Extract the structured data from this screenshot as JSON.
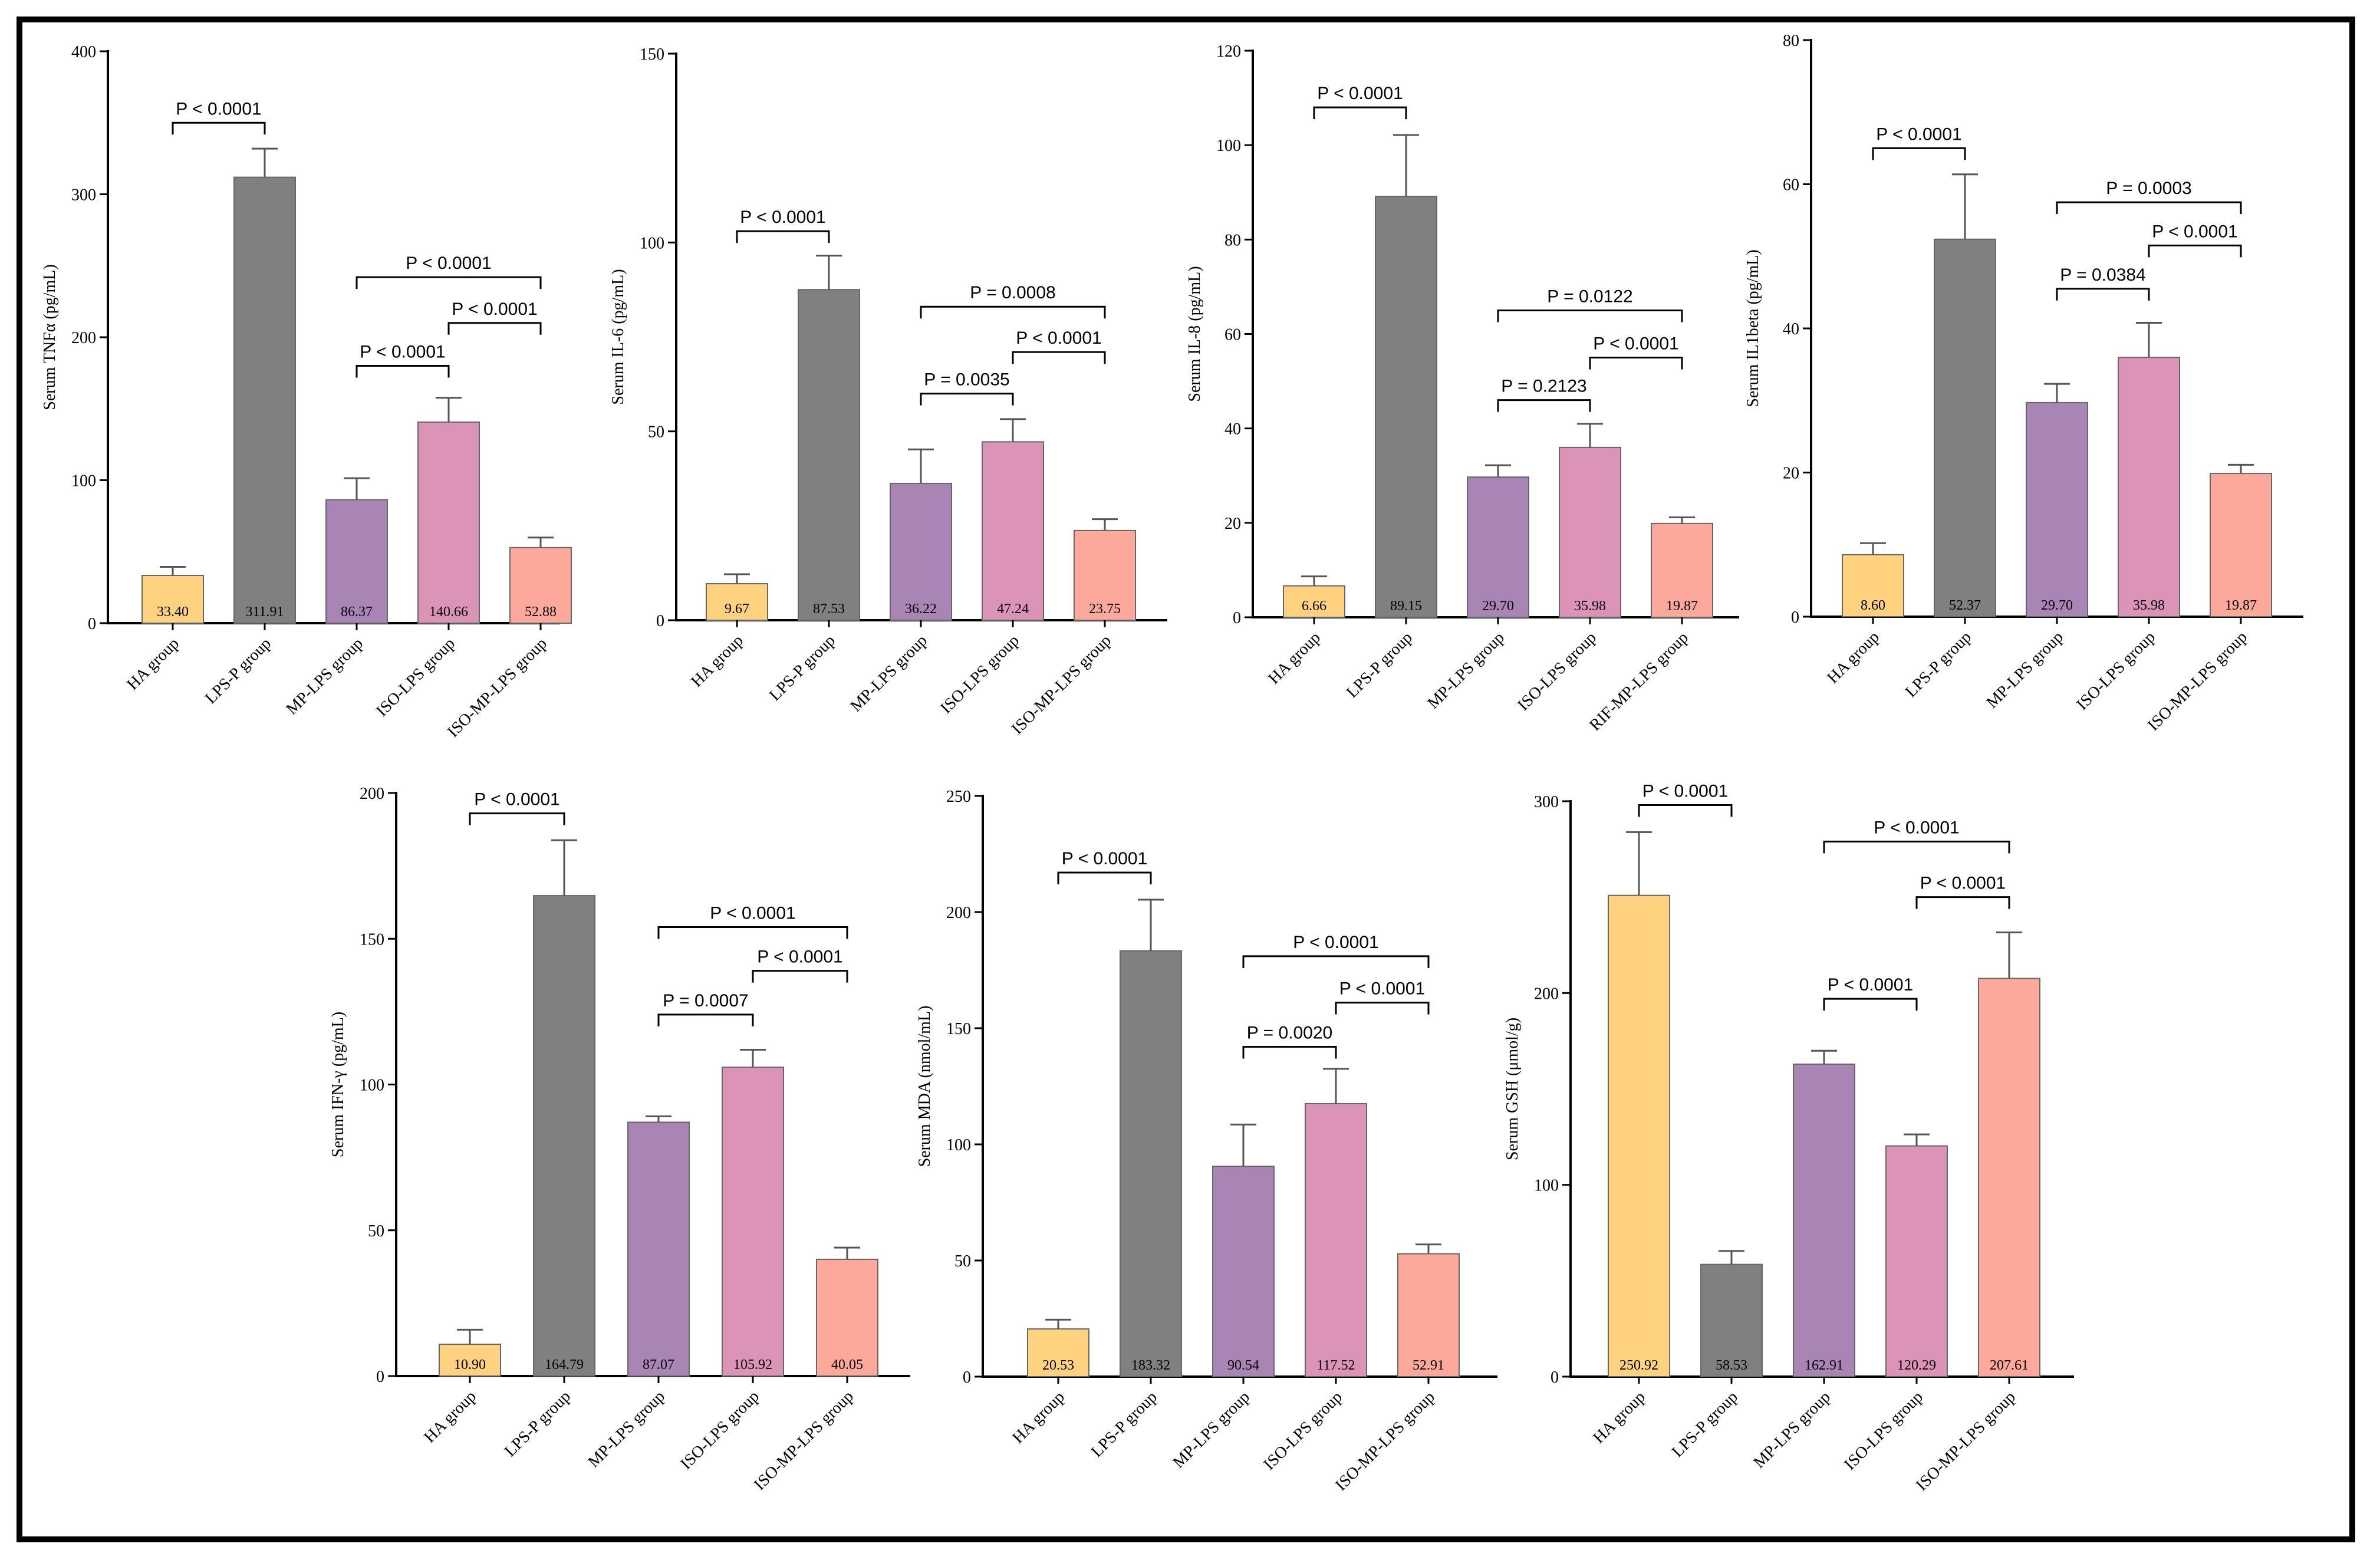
{
  "chart_data": [
    {
      "type": "bar",
      "ylabel": "Serum TNFα (pg/mL)",
      "ylim": [
        0,
        400
      ],
      "yticks": [
        0,
        100,
        200,
        300,
        400
      ],
      "categories": [
        "HA group",
        "LPS-P group",
        "MP-LPS group",
        "ISO-LPS group",
        "ISO-MP-LPS group"
      ],
      "values": [
        33.4,
        311.91,
        86.37,
        140.66,
        52.88
      ],
      "value_labels": [
        "33.40",
        "311.91",
        "86.37",
        "140.66",
        "52.88"
      ],
      "errors": [
        6,
        20,
        15,
        17,
        7
      ],
      "colors": [
        "#FFD27F",
        "#808080",
        "#A985B6",
        "#DC93B8",
        "#FCA89A"
      ],
      "comparisons": [
        {
          "from": 0,
          "to": 1,
          "y": 350,
          "label": "P < 0.0001"
        },
        {
          "from": 2,
          "to": 3,
          "y": 180,
          "label": "P < 0.0001"
        },
        {
          "from": 2,
          "to": 4,
          "y": 242,
          "label": "P < 0.0001"
        },
        {
          "from": 3,
          "to": 4,
          "y": 210,
          "label": "P < 0.0001"
        }
      ]
    },
    {
      "type": "bar",
      "ylabel": "Serum IL-6 (pg/mL)",
      "ylim": [
        0,
        150
      ],
      "yticks": [
        0,
        50,
        100,
        150
      ],
      "categories": [
        "HA group",
        "LPS-P group",
        "MP-LPS group",
        "ISO-LPS group",
        "ISO-MP-LPS group"
      ],
      "values": [
        9.67,
        87.53,
        36.22,
        47.24,
        23.75
      ],
      "value_labels": [
        "9.67",
        "87.53",
        "36.22",
        "47.24",
        "23.75"
      ],
      "errors": [
        2.5,
        9,
        9,
        6,
        3
      ],
      "colors": [
        "#FFD27F",
        "#808080",
        "#A985B6",
        "#DC93B8",
        "#FCA89A"
      ],
      "comparisons": [
        {
          "from": 0,
          "to": 1,
          "y": 103,
          "label": "P < 0.0001"
        },
        {
          "from": 2,
          "to": 3,
          "y": 60,
          "label": "P = 0.0035"
        },
        {
          "from": 2,
          "to": 4,
          "y": 83,
          "label": "P = 0.0008"
        },
        {
          "from": 3,
          "to": 4,
          "y": 71,
          "label": "P < 0.0001"
        }
      ]
    },
    {
      "type": "bar",
      "ylabel": "Serum IL-8 (pg/mL)",
      "ylim": [
        0,
        120
      ],
      "yticks": [
        0,
        20,
        40,
        60,
        80,
        100,
        120
      ],
      "categories": [
        "HA group",
        "LPS-P group",
        "MP-LPS group",
        "ISO-LPS group",
        "RIF-MP-LPS group"
      ],
      "values": [
        6.66,
        89.15,
        29.7,
        35.98,
        19.87
      ],
      "value_labels": [
        "6.66",
        "89.15",
        "29.70",
        "35.98",
        "19.87"
      ],
      "errors": [
        2,
        13,
        2.5,
        5,
        1.3
      ],
      "colors": [
        "#FFD27F",
        "#808080",
        "#A985B6",
        "#DC93B8",
        "#FCA89A"
      ],
      "comparisons": [
        {
          "from": 0,
          "to": 1,
          "y": 108,
          "label": "P < 0.0001"
        },
        {
          "from": 2,
          "to": 3,
          "y": 46,
          "label": "P = 0.2123"
        },
        {
          "from": 2,
          "to": 4,
          "y": 65,
          "label": "P = 0.0122"
        },
        {
          "from": 3,
          "to": 4,
          "y": 55,
          "label": "P < 0.0001"
        }
      ]
    },
    {
      "type": "bar",
      "ylabel": "Serum IL1beta (pg/mL)",
      "ylim": [
        0,
        80
      ],
      "yticks": [
        0,
        20,
        40,
        60,
        80
      ],
      "categories": [
        "HA group",
        "LPS-P group",
        "MP-LPS group",
        "ISO-LPS group",
        "ISO-MP-LPS group"
      ],
      "values": [
        8.6,
        52.37,
        29.7,
        35.98,
        19.87
      ],
      "value_labels": [
        "8.60",
        "52.37",
        "29.70",
        "35.98",
        "19.87"
      ],
      "errors": [
        1.6,
        9,
        2.6,
        4.8,
        1.2
      ],
      "colors": [
        "#FFD27F",
        "#808080",
        "#A985B6",
        "#DC93B8",
        "#FCA89A"
      ],
      "comparisons": [
        {
          "from": 0,
          "to": 1,
          "y": 65,
          "label": "P < 0.0001"
        },
        {
          "from": 2,
          "to": 3,
          "y": 45.5,
          "label": "P = 0.0384"
        },
        {
          "from": 2,
          "to": 4,
          "y": 57.5,
          "label": "P = 0.0003"
        },
        {
          "from": 3,
          "to": 4,
          "y": 51.5,
          "label": "P < 0.0001"
        }
      ]
    },
    {
      "type": "bar",
      "ylabel": "Serum IFN-γ (pg/mL)",
      "ylim": [
        0,
        200
      ],
      "yticks": [
        0,
        50,
        100,
        150,
        200
      ],
      "categories": [
        "HA group",
        "LPS-P group",
        "MP-LPS group",
        "ISO-LPS group",
        "ISO-MP-LPS group"
      ],
      "values": [
        10.9,
        164.79,
        87.07,
        105.92,
        40.05
      ],
      "value_labels": [
        "10.90",
        "164.79",
        "87.07",
        "105.92",
        "40.05"
      ],
      "errors": [
        5,
        19,
        2,
        6,
        4
      ],
      "colors": [
        "#FFD27F",
        "#808080",
        "#A985B6",
        "#DC93B8",
        "#FCA89A"
      ],
      "comparisons": [
        {
          "from": 0,
          "to": 1,
          "y": 193,
          "label": "P < 0.0001"
        },
        {
          "from": 2,
          "to": 3,
          "y": 124,
          "label": "P = 0.0007"
        },
        {
          "from": 2,
          "to": 4,
          "y": 154,
          "label": "P < 0.0001"
        },
        {
          "from": 3,
          "to": 4,
          "y": 139,
          "label": "P < 0.0001"
        }
      ]
    },
    {
      "type": "bar",
      "ylabel": "Serum MDA (nmol/mL)",
      "ylim": [
        0,
        250
      ],
      "yticks": [
        0,
        50,
        100,
        150,
        200,
        250
      ],
      "categories": [
        "HA group",
        "LPS-P group",
        "MP-LPS group",
        "ISO-LPS group",
        "ISO-MP-LPS group"
      ],
      "values": [
        20.53,
        183.32,
        90.54,
        117.52,
        52.91
      ],
      "value_labels": [
        "20.53",
        "183.32",
        "90.54",
        "117.52",
        "52.91"
      ],
      "errors": [
        4,
        22,
        18,
        15,
        4
      ],
      "colors": [
        "#FFD27F",
        "#808080",
        "#A985B6",
        "#DC93B8",
        "#FCA89A"
      ],
      "comparisons": [
        {
          "from": 0,
          "to": 1,
          "y": 217,
          "label": "P < 0.0001"
        },
        {
          "from": 2,
          "to": 3,
          "y": 142,
          "label": "P = 0.0020"
        },
        {
          "from": 2,
          "to": 4,
          "y": 181,
          "label": "P < 0.0001"
        },
        {
          "from": 3,
          "to": 4,
          "y": 161,
          "label": "P < 0.0001"
        }
      ]
    },
    {
      "type": "bar",
      "ylabel": "Serum GSH (μmol/g)",
      "ylim": [
        0,
        300
      ],
      "yticks": [
        0,
        100,
        200,
        300
      ],
      "categories": [
        "HA group",
        "LPS-P group",
        "MP-LPS group",
        "ISO-LPS group",
        "ISO-MP-LPS group"
      ],
      "values": [
        250.92,
        58.53,
        162.91,
        120.29,
        207.61
      ],
      "value_labels": [
        "250.92",
        "58.53",
        "162.91",
        "120.29",
        "207.61"
      ],
      "errors": [
        33,
        7,
        7,
        6,
        24
      ],
      "colors": [
        "#FFD27F",
        "#808080",
        "#A985B6",
        "#DC93B8",
        "#FCA89A"
      ],
      "comparisons": [
        {
          "from": 0,
          "to": 1,
          "y": 298,
          "label": "P < 0.0001"
        },
        {
          "from": 2,
          "to": 3,
          "y": 197,
          "label": "P < 0.0001"
        },
        {
          "from": 2,
          "to": 4,
          "y": 279,
          "label": "P < 0.0001"
        },
        {
          "from": 3,
          "to": 4,
          "y": 250,
          "label": "P < 0.0001"
        }
      ]
    }
  ]
}
